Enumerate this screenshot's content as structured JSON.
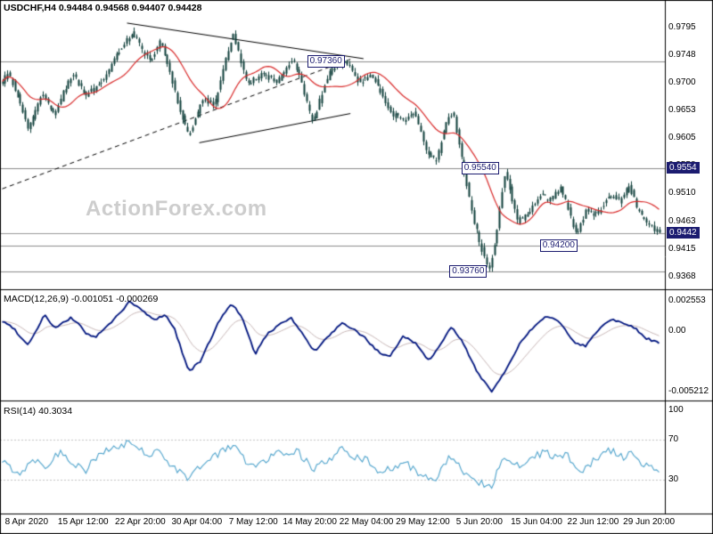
{
  "header": {
    "symbol_ohlc": "USDCHF,H4 0.94484 0.94568 0.94407 0.94428"
  },
  "watermark": {
    "text": "ActionForex.com"
  },
  "colors": {
    "background": "#ffffff",
    "candle": "#0f3f3a",
    "ma_line": "#d92b2b",
    "macd_line": "#00157f",
    "macd_signal": "#c9b8b8",
    "rsi_line": "#4ea3cc",
    "level_line": "#8a8a8a",
    "current_price_line": "#9a9a9a",
    "trend_line": "#000000",
    "dashed_grid": "#c4c4c4",
    "badge_bg": "#1c1c70",
    "box_color": "#1c1c70"
  },
  "chart_data": {
    "type": "candlestick",
    "title": "USDCHF H4",
    "current_ohlc": {
      "open": 0.94484,
      "high": 0.94568,
      "low": 0.94407,
      "close": 0.94428
    },
    "panels": {
      "main": {
        "y_range": [
          0.9346,
          0.984
        ],
        "bar_count": 260,
        "bar_noise": 0.0009,
        "current_price": 0.94428,
        "y_ticks": [
          {
            "label": "0.9795",
            "value": 0.9795
          },
          {
            "label": "0.9748",
            "value": 0.97475
          },
          {
            "label": "0.9700",
            "value": 0.97
          },
          {
            "label": "0.9653",
            "value": 0.96525
          },
          {
            "label": "0.9605",
            "value": 0.9605
          },
          {
            "label": "0.9558",
            "value": 0.95575
          },
          {
            "label": "0.9510",
            "value": 0.951
          },
          {
            "label": "0.9463",
            "value": 0.94625
          },
          {
            "label": "0.9415",
            "value": 0.9415
          },
          {
            "label": "0.9368",
            "value": 0.93675
          }
        ],
        "axis_badges": [
          {
            "label": "0.9554",
            "value": 0.9554
          },
          {
            "label": "0.9442",
            "value": 0.94428
          }
        ],
        "level_lines": [
          {
            "label": "0.97360",
            "value": 0.9736,
            "box_x": 0.462
          },
          {
            "label": "0.95540",
            "value": 0.9554,
            "box_x": 0.694
          },
          {
            "label": "0.94200",
            "value": 0.942,
            "box_x": 0.812
          },
          {
            "label": "0.93760",
            "value": 0.9376,
            "box_x": 0.676
          }
        ],
        "trend_lines": [
          {
            "x1": 0.0,
            "p1": 0.9518,
            "x2": 0.53,
            "p2": 0.974,
            "dash": true
          },
          {
            "x1": 0.19,
            "p1": 0.9802,
            "x2": 0.55,
            "p2": 0.9741,
            "dash": false
          },
          {
            "x1": 0.3,
            "p1": 0.9597,
            "x2": 0.53,
            "p2": 0.9647,
            "dash": false
          }
        ],
        "price_path": [
          [
            0.0,
            0.9702
          ],
          [
            0.008,
            0.9718
          ],
          [
            0.02,
            0.9688
          ],
          [
            0.04,
            0.962
          ],
          [
            0.06,
            0.9682
          ],
          [
            0.08,
            0.9645
          ],
          [
            0.094,
            0.9688
          ],
          [
            0.107,
            0.9716
          ],
          [
            0.127,
            0.9678
          ],
          [
            0.154,
            0.9704
          ],
          [
            0.175,
            0.975
          ],
          [
            0.198,
            0.9788
          ],
          [
            0.212,
            0.9756
          ],
          [
            0.225,
            0.9738
          ],
          [
            0.241,
            0.9772
          ],
          [
            0.255,
            0.9715
          ],
          [
            0.268,
            0.966
          ],
          [
            0.284,
            0.9608
          ],
          [
            0.306,
            0.9675
          ],
          [
            0.322,
            0.9658
          ],
          [
            0.338,
            0.973
          ],
          [
            0.351,
            0.9788
          ],
          [
            0.362,
            0.974
          ],
          [
            0.373,
            0.9696
          ],
          [
            0.395,
            0.9716
          ],
          [
            0.416,
            0.97
          ],
          [
            0.43,
            0.9722
          ],
          [
            0.442,
            0.974
          ],
          [
            0.455,
            0.97
          ],
          [
            0.472,
            0.9628
          ],
          [
            0.49,
            0.9696
          ],
          [
            0.503,
            0.9728
          ],
          [
            0.523,
            0.9735
          ],
          [
            0.543,
            0.97
          ],
          [
            0.563,
            0.9712
          ],
          [
            0.578,
            0.968
          ],
          [
            0.59,
            0.965
          ],
          [
            0.61,
            0.9634
          ],
          [
            0.627,
            0.9652
          ],
          [
            0.646,
            0.9582
          ],
          [
            0.66,
            0.9565
          ],
          [
            0.677,
            0.9638
          ],
          [
            0.686,
            0.965
          ],
          [
            0.704,
            0.954
          ],
          [
            0.716,
            0.947
          ],
          [
            0.728,
            0.942
          ],
          [
            0.741,
            0.9378
          ],
          [
            0.752,
            0.944
          ],
          [
            0.764,
            0.9545
          ],
          [
            0.772,
            0.952
          ],
          [
            0.784,
            0.9462
          ],
          [
            0.801,
            0.9476
          ],
          [
            0.82,
            0.951
          ],
          [
            0.832,
            0.9498
          ],
          [
            0.851,
            0.952
          ],
          [
            0.862,
            0.9478
          ],
          [
            0.874,
            0.944
          ],
          [
            0.889,
            0.9482
          ],
          [
            0.905,
            0.9472
          ],
          [
            0.925,
            0.9508
          ],
          [
            0.94,
            0.9496
          ],
          [
            0.954,
            0.9524
          ],
          [
            0.968,
            0.9478
          ],
          [
            0.985,
            0.9456
          ],
          [
            1.0,
            0.9443
          ]
        ]
      },
      "macd": {
        "label": "MACD(12,26,9) -0.001051 -0.000269",
        "y_range": [
          -0.0059,
          0.0034
        ],
        "y_ticks": [
          {
            "label": "0.002553",
            "value": 0.002553
          },
          {
            "label": "0.00",
            "value": 0
          },
          {
            "label": "-0.005212",
            "value": -0.005212
          }
        ],
        "path": [
          [
            0.0,
            0.0008
          ],
          [
            0.016,
            0.0003
          ],
          [
            0.038,
            -0.0012
          ],
          [
            0.05,
            -0.0002
          ],
          [
            0.064,
            0.0014
          ],
          [
            0.08,
            0.0002
          ],
          [
            0.105,
            0.0011
          ],
          [
            0.12,
            0.0004
          ],
          [
            0.127,
            -0.0002
          ],
          [
            0.141,
            -0.0006
          ],
          [
            0.164,
            0.0006
          ],
          [
            0.18,
            0.0016
          ],
          [
            0.194,
            0.0025
          ],
          [
            0.214,
            0.0017
          ],
          [
            0.231,
            0.0009
          ],
          [
            0.248,
            0.0014
          ],
          [
            0.262,
            0.0002
          ],
          [
            0.268,
            -0.0008
          ],
          [
            0.284,
            -0.0035
          ],
          [
            0.302,
            -0.0026
          ],
          [
            0.328,
            0.0006
          ],
          [
            0.349,
            0.0024
          ],
          [
            0.365,
            0.0011
          ],
          [
            0.385,
            -0.002
          ],
          [
            0.402,
            -0.0004
          ],
          [
            0.422,
            0.0006
          ],
          [
            0.44,
            0.0011
          ],
          [
            0.456,
            -0.0002
          ],
          [
            0.476,
            -0.0018
          ],
          [
            0.496,
            -0.0005
          ],
          [
            0.517,
            0.0006
          ],
          [
            0.533,
            0.0002
          ],
          [
            0.552,
            -0.0006
          ],
          [
            0.574,
            -0.0019
          ],
          [
            0.59,
            -0.0023
          ],
          [
            0.61,
            -0.0004
          ],
          [
            0.63,
            -0.0011
          ],
          [
            0.65,
            -0.0026
          ],
          [
            0.667,
            -0.0011
          ],
          [
            0.684,
            0.0003
          ],
          [
            0.7,
            -0.0009
          ],
          [
            0.724,
            -0.0036
          ],
          [
            0.745,
            -0.0052
          ],
          [
            0.767,
            -0.0034
          ],
          [
            0.791,
            -0.0008
          ],
          [
            0.811,
            0.0004
          ],
          [
            0.831,
            0.0013
          ],
          [
            0.851,
            0.0006
          ],
          [
            0.871,
            -0.001
          ],
          [
            0.888,
            -0.0013
          ],
          [
            0.909,
            0.0002
          ],
          [
            0.928,
            0.001
          ],
          [
            0.945,
            0.0007
          ],
          [
            0.962,
            0.0003
          ],
          [
            0.979,
            -0.0006
          ],
          [
            1.0,
            -0.00105
          ]
        ]
      },
      "rsi": {
        "label": "RSI(14) 40.3034",
        "y_range": [
          -3,
          107
        ],
        "y_ticks": [
          {
            "label": "100",
            "value": 100
          },
          {
            "label": "70",
            "value": 70
          },
          {
            "label": "30",
            "value": 30
          }
        ],
        "dashed_levels": [
          70,
          30
        ],
        "noise": 8,
        "path": [
          [
            0.0,
            48
          ],
          [
            0.027,
            36
          ],
          [
            0.047,
            52
          ],
          [
            0.067,
            44
          ],
          [
            0.087,
            58
          ],
          [
            0.107,
            48
          ],
          [
            0.127,
            40
          ],
          [
            0.147,
            55
          ],
          [
            0.174,
            62
          ],
          [
            0.198,
            68
          ],
          [
            0.217,
            55
          ],
          [
            0.239,
            60
          ],
          [
            0.261,
            42
          ],
          [
            0.284,
            32
          ],
          [
            0.308,
            48
          ],
          [
            0.328,
            55
          ],
          [
            0.351,
            66
          ],
          [
            0.369,
            50
          ],
          [
            0.386,
            42
          ],
          [
            0.409,
            55
          ],
          [
            0.429,
            58
          ],
          [
            0.449,
            60
          ],
          [
            0.472,
            40
          ],
          [
            0.493,
            48
          ],
          [
            0.517,
            60
          ],
          [
            0.536,
            52
          ],
          [
            0.556,
            50
          ],
          [
            0.576,
            38
          ],
          [
            0.597,
            42
          ],
          [
            0.617,
            45
          ],
          [
            0.641,
            34
          ],
          [
            0.66,
            30
          ],
          [
            0.681,
            52
          ],
          [
            0.7,
            40
          ],
          [
            0.724,
            28
          ],
          [
            0.745,
            24
          ],
          [
            0.764,
            55
          ],
          [
            0.784,
            45
          ],
          [
            0.804,
            50
          ],
          [
            0.824,
            58
          ],
          [
            0.842,
            52
          ],
          [
            0.858,
            56
          ],
          [
            0.878,
            38
          ],
          [
            0.898,
            48
          ],
          [
            0.925,
            60
          ],
          [
            0.945,
            52
          ],
          [
            0.957,
            58
          ],
          [
            0.973,
            44
          ],
          [
            1.0,
            40.3
          ]
        ]
      }
    },
    "x_axis": {
      "labels": [
        {
          "text": "8 Apr 2020",
          "x": 0.04
        },
        {
          "text": "15 Apr 12:00",
          "x": 0.125
        },
        {
          "text": "22 Apr 20:00",
          "x": 0.211
        },
        {
          "text": "30 Apr 04:00",
          "x": 0.296
        },
        {
          "text": "7 May 12:00",
          "x": 0.381
        },
        {
          "text": "14 May 20:00",
          "x": 0.466
        },
        {
          "text": "22 May 04:00",
          "x": 0.551
        },
        {
          "text": "29 May 12:00",
          "x": 0.636
        },
        {
          "text": "5 Jun 20:00",
          "x": 0.721
        },
        {
          "text": "15 Jun 04:00",
          "x": 0.807
        },
        {
          "text": "22 Jun 12:00",
          "x": 0.892
        },
        {
          "text": "29 Jun 20:00",
          "x": 0.976
        }
      ]
    }
  }
}
